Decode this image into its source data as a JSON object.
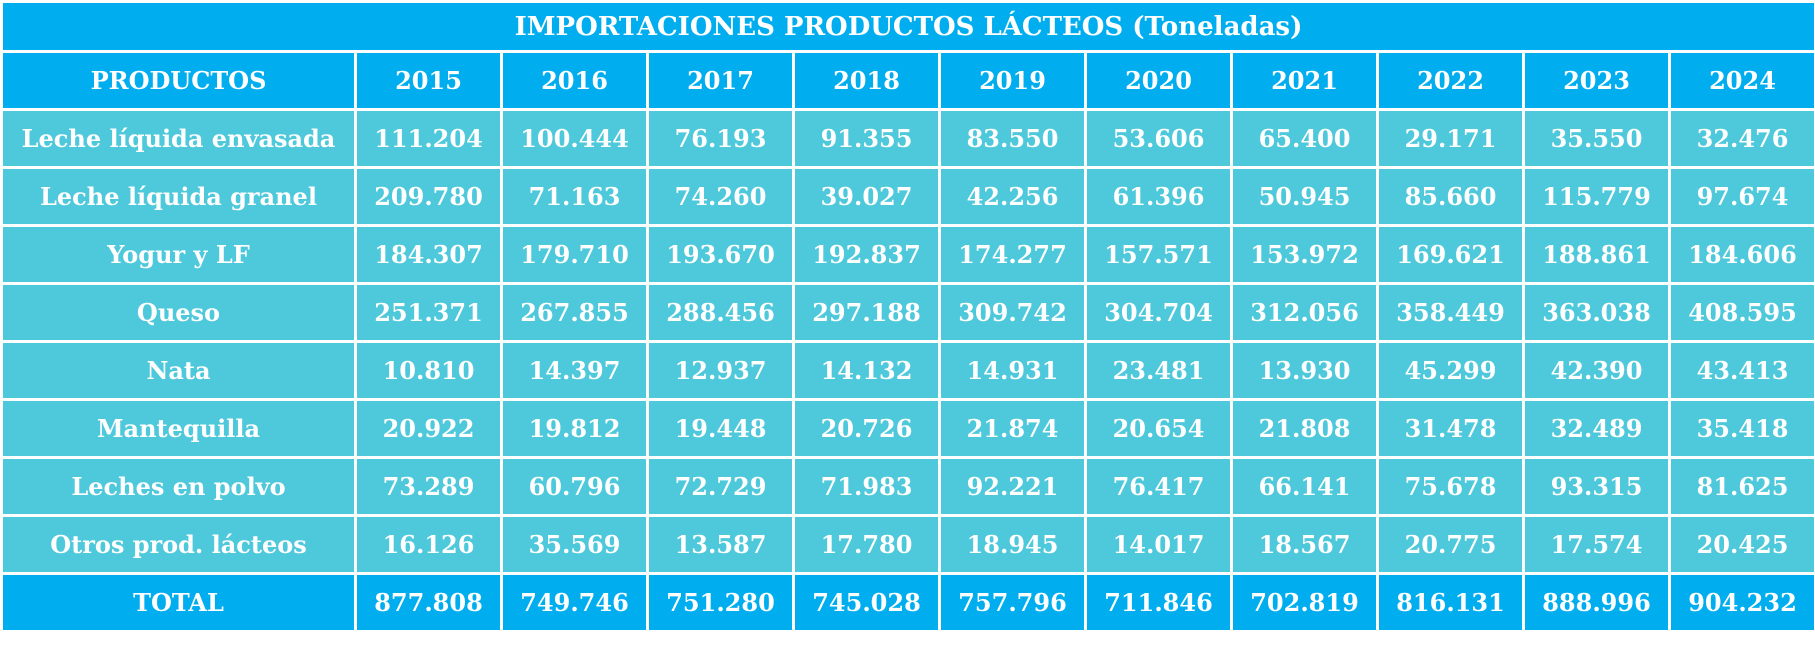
{
  "chart_data": {
    "type": "table",
    "title": "IMPORTACIONES PRODUCTOS LÁCTEOS (Toneladas)",
    "header": [
      "PRODUCTOS",
      "2015",
      "2016",
      "2017",
      "2018",
      "2019",
      "2020",
      "2021",
      "2022",
      "2023",
      "2024"
    ],
    "rows": [
      {
        "label": "Leche líquida envasada",
        "values": [
          "111.204",
          "100.444",
          "76.193",
          "91.355",
          "83.550",
          "53.606",
          "65.400",
          "29.171",
          "35.550",
          "32.476"
        ]
      },
      {
        "label": "Leche líquida granel",
        "values": [
          "209.780",
          "71.163",
          "74.260",
          "39.027",
          "42.256",
          "61.396",
          "50.945",
          "85.660",
          "115.779",
          "97.674"
        ]
      },
      {
        "label": "Yogur y LF",
        "values": [
          "184.307",
          "179.710",
          "193.670",
          "192.837",
          "174.277",
          "157.571",
          "153.972",
          "169.621",
          "188.861",
          "184.606"
        ]
      },
      {
        "label": "Queso",
        "values": [
          "251.371",
          "267.855",
          "288.456",
          "297.188",
          "309.742",
          "304.704",
          "312.056",
          "358.449",
          "363.038",
          "408.595"
        ]
      },
      {
        "label": "Nata",
        "values": [
          "10.810",
          "14.397",
          "12.937",
          "14.132",
          "14.931",
          "23.481",
          "13.930",
          "45.299",
          "42.390",
          "43.413"
        ]
      },
      {
        "label": "Mantequilla",
        "values": [
          "20.922",
          "19.812",
          "19.448",
          "20.726",
          "21.874",
          "20.654",
          "21.808",
          "31.478",
          "32.489",
          "35.418"
        ]
      },
      {
        "label": "Leches en polvo",
        "values": [
          "73.289",
          "60.796",
          "72.729",
          "71.983",
          "92.221",
          "76.417",
          "66.141",
          "75.678",
          "93.315",
          "81.625"
        ]
      },
      {
        "label": "Otros prod. lácteos",
        "values": [
          "16.126",
          "35.569",
          "13.587",
          "17.780",
          "18.945",
          "14.017",
          "18.567",
          "20.775",
          "17.574",
          "20.425"
        ]
      }
    ],
    "total": {
      "label": "TOTAL",
      "values": [
        "877.808",
        "749.746",
        "751.280",
        "745.028",
        "757.796",
        "711.846",
        "702.819",
        "816.131",
        "888.996",
        "904.232"
      ]
    }
  },
  "colors": {
    "header_background": "#00aeef",
    "row_background": "#4ec8db",
    "text": "#ffffff",
    "grid_lines": "#ffffff"
  }
}
